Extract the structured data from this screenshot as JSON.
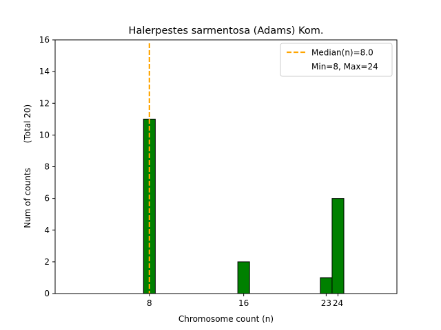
{
  "chart_data": {
    "type": "bar",
    "title": "Halerpestes sarmentosa (Adams) Kom.",
    "xlabel": "Chromosome count (n)",
    "ylabel": "Num of counts",
    "ylabel_extra": "(Total 20)",
    "xlim": [
      0,
      29
    ],
    "ylim": [
      0,
      16
    ],
    "yticks": [
      0,
      2,
      4,
      6,
      8,
      10,
      12,
      14,
      16
    ],
    "xticks": [
      8,
      16,
      23,
      24
    ],
    "xtick_labels": [
      "8",
      "16",
      "23",
      "24"
    ],
    "bar_color": "#008000",
    "bar_edge_color": "#000000",
    "bars": [
      {
        "x": 8,
        "value": 11
      },
      {
        "x": 16,
        "value": 2
      },
      {
        "x": 23,
        "value": 1
      },
      {
        "x": 24,
        "value": 6
      }
    ],
    "bar_width": 1,
    "median_line": {
      "x": 8,
      "color": "#FFA500",
      "label": "Median(n)=8.0"
    },
    "legend": {
      "placement": "top-right",
      "entries": [
        "Median(n)=8.0",
        "Min=8, Max=24"
      ]
    }
  }
}
